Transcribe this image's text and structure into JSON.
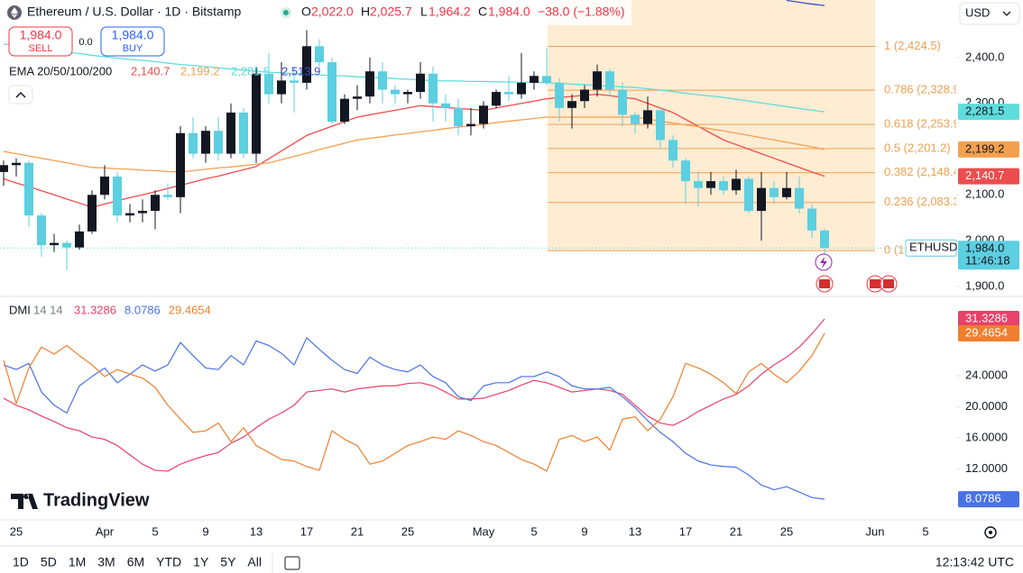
{
  "header": {
    "symbol": "Ethereum / U.S. Dollar · 1D · Bitstamp",
    "open_key": "O",
    "open": "2,022.0",
    "high_key": "H",
    "high": "2,025.7",
    "low_key": "L",
    "low": "1,964.2",
    "close_key": "C",
    "close": "1,984.0",
    "change": "−38.0 (−1.88%)"
  },
  "trade": {
    "sell_price": "1,984.0",
    "sell": "SELL",
    "spread": "0.0",
    "buy_price": "1,984.0",
    "buy": "BUY"
  },
  "currency": "USD",
  "brand": "TradingView",
  "timeframes": [
    "1D",
    "5D",
    "1M",
    "3M",
    "6M",
    "YTD",
    "1Y",
    "5Y",
    "All"
  ],
  "clock": "12:13:42 UTC",
  "chart_data": [
    {
      "type": "candlestick",
      "categories": [
        null,
        "25",
        null,
        null,
        null,
        null,
        null,
        null,
        "Apr",
        null,
        null,
        null,
        "5",
        null,
        null,
        null,
        "9",
        null,
        null,
        null,
        "13",
        null,
        null,
        null,
        "17",
        null,
        null,
        null,
        "21",
        null,
        null,
        null,
        "25",
        null,
        null,
        null,
        null,
        null,
        "May",
        null,
        null,
        null,
        "5",
        null,
        null,
        null,
        "9",
        null,
        null,
        null,
        "13",
        null,
        null,
        null,
        "17",
        null,
        null,
        null,
        "21",
        null,
        null,
        null,
        "25",
        null,
        null,
        null,
        null,
        null,
        null,
        "Jun",
        null,
        null,
        null,
        "5"
      ],
      "open": [
        2150,
        2165,
        2170,
        2055,
        1990,
        1995,
        1985,
        2020,
        2100,
        2140,
        2055,
        2060,
        2065,
        2100,
        2095,
        2235,
        2190,
        2240,
        2190,
        2280,
        2190,
        2365,
        2320,
        2350,
        2345,
        2425,
        2390,
        2260,
        2310,
        2315,
        2370,
        2330,
        2320,
        2325,
        2365,
        2300,
        2290,
        2250,
        2255,
        2295,
        2325,
        2320,
        2345,
        2360,
        2345,
        2290,
        2305,
        2330,
        2370,
        2330,
        2275,
        2255,
        2285,
        2220,
        2175,
        2130,
        2115,
        2130,
        2110,
        2135,
        2065,
        2115,
        2095,
        2115,
        2070,
        2022,
        null,
        null,
        null,
        null,
        null,
        null,
        null,
        null
      ],
      "high": [
        2175,
        2180,
        2175,
        2060,
        2015,
        2000,
        2035,
        2110,
        2165,
        2150,
        2080,
        2090,
        2110,
        2125,
        2250,
        2270,
        2250,
        2270,
        2300,
        2290,
        2380,
        2410,
        2390,
        2380,
        2460,
        2440,
        2400,
        2320,
        2340,
        2400,
        2390,
        2340,
        2330,
        2390,
        2380,
        2320,
        2310,
        2290,
        2305,
        2330,
        2360,
        2410,
        2370,
        2420,
        2355,
        2320,
        2340,
        2385,
        2375,
        2345,
        2280,
        2315,
        2290,
        2230,
        2180,
        2150,
        2150,
        2140,
        2155,
        2140,
        2150,
        2130,
        2150,
        2140,
        2080,
        2025.7,
        null,
        null,
        null,
        null,
        null,
        null,
        null,
        null
      ],
      "low": [
        2120,
        2140,
        2030,
        1965,
        1975,
        1935,
        1980,
        2015,
        2090,
        2040,
        2040,
        2040,
        2025,
        2090,
        2060,
        2180,
        2170,
        2175,
        2180,
        2180,
        2170,
        2300,
        2300,
        2280,
        2330,
        2380,
        2255,
        2255,
        2285,
        2300,
        2300,
        2300,
        2300,
        2310,
        2260,
        2260,
        2230,
        2230,
        2245,
        2290,
        2305,
        2310,
        2330,
        2340,
        2260,
        2245,
        2290,
        2315,
        2320,
        2250,
        2235,
        2245,
        2200,
        2160,
        2080,
        2075,
        2100,
        2100,
        2100,
        2060,
        2000,
        2080,
        2090,
        2060,
        2005,
        1964.2,
        null,
        null,
        null,
        null,
        null,
        null,
        null,
        null
      ],
      "close": [
        2165,
        2170,
        2055,
        1990,
        1995,
        1985,
        2020,
        2100,
        2140,
        2055,
        2060,
        2065,
        2100,
        2095,
        2235,
        2190,
        2240,
        2190,
        2280,
        2190,
        2365,
        2320,
        2350,
        2345,
        2425,
        2390,
        2260,
        2310,
        2315,
        2370,
        2330,
        2320,
        2325,
        2365,
        2300,
        2290,
        2250,
        2255,
        2295,
        2325,
        2320,
        2345,
        2360,
        2345,
        2290,
        2305,
        2330,
        2370,
        2330,
        2275,
        2255,
        2285,
        2220,
        2175,
        2130,
        2115,
        2130,
        2110,
        2135,
        2065,
        2115,
        2095,
        2115,
        2070,
        2022,
        1984,
        null,
        null,
        null,
        null,
        null,
        null,
        null,
        null
      ],
      "up_color": "#131722",
      "down_color": "#5ccfe0",
      "ylim": [
        1880,
        2526
      ],
      "yticks": [
        {
          "value": 1900,
          "label": "1,900.0"
        },
        {
          "value": 2000,
          "label": "2,000.0"
        },
        {
          "value": 2100,
          "label": "2,100.0"
        },
        {
          "value": 2300,
          "label": "2,300.0"
        },
        {
          "value": 2400,
          "label": "2,400.0"
        }
      ],
      "grid": false,
      "legend_title": "EMA 20/50/100/200",
      "series": [
        {
          "color": "#ec4d4d",
          "last_label": "2,140.7",
          "badge": true,
          "values": [
            2135,
            2126,
            2118,
            2109,
            2100,
            2091,
            2082,
            2073,
            2080,
            2087,
            2094,
            2100,
            2107,
            2114,
            2121,
            2128,
            2135,
            2141,
            2148,
            2155,
            2162,
            2179,
            2196,
            2213,
            2230,
            2240,
            2250,
            2260,
            2270,
            2275,
            2280,
            2285,
            2290,
            2295,
            2293,
            2291,
            2289,
            2287,
            2285,
            2290,
            2295,
            2300,
            2305,
            2310,
            2313,
            2315,
            2318,
            2320,
            2317,
            2313,
            2310,
            2300,
            2290,
            2280,
            2265,
            2250,
            2235,
            2220,
            2210,
            2200,
            2190,
            2180,
            2170,
            2160,
            2150,
            2140.7,
            null,
            null,
            null,
            null,
            null,
            null,
            null,
            null
          ]
        },
        {
          "color": "#f3a04e",
          "last_label": "2,199.2",
          "badge": true,
          "values": [
            2195,
            2190,
            2185,
            2180,
            2175,
            2170,
            2165,
            2160,
            2159,
            2157,
            2156,
            2154,
            2153,
            2151,
            2150,
            2153,
            2156,
            2159,
            2161,
            2164,
            2167,
            2170,
            2177,
            2184,
            2191,
            2199,
            2206,
            2213,
            2220,
            2224,
            2227,
            2231,
            2234,
            2238,
            2241,
            2245,
            2248,
            2251,
            2254,
            2258,
            2261,
            2264,
            2267,
            2270,
            2270,
            2270,
            2270,
            2270,
            2270,
            2270,
            2270,
            2266,
            2261,
            2257,
            2253,
            2249,
            2244,
            2240,
            2235,
            2230,
            2225,
            2220,
            2215,
            2210,
            2205,
            2199.2,
            null,
            null,
            null,
            null,
            null,
            null,
            null,
            null
          ]
        },
        {
          "color": "#5fdcdc",
          "last_label": "2,281.5",
          "badge": true,
          "values": [
            2430,
            2426,
            2423,
            2419,
            2416,
            2412,
            2409,
            2405,
            2402,
            2399,
            2396,
            2394,
            2391,
            2388,
            2385,
            2383,
            2380,
            2378,
            2375,
            2373,
            2370,
            2368,
            2367,
            2365,
            2364,
            2362,
            2361,
            2360,
            2358,
            2357,
            2356,
            2354,
            2353,
            2351,
            2350,
            2349,
            2349,
            2348,
            2348,
            2347,
            2347,
            2346,
            2346,
            2345,
            2344,
            2342,
            2341,
            2339,
            2338,
            2336,
            2335,
            2332,
            2329,
            2326,
            2322,
            2319,
            2316,
            2313,
            2309,
            2305,
            2301,
            2297,
            2293,
            2289,
            2285,
            2281.5,
            null,
            null,
            null,
            null,
            null,
            null,
            null,
            null
          ]
        },
        {
          "color": "#3f4bd1",
          "last_label": "2,513.9",
          "badge": false,
          "values": [
            null,
            null,
            null,
            null,
            null,
            null,
            null,
            null,
            null,
            null,
            null,
            null,
            null,
            null,
            null,
            null,
            null,
            null,
            null,
            null,
            null,
            null,
            null,
            null,
            null,
            null,
            null,
            null,
            null,
            null,
            null,
            null,
            null,
            null,
            null,
            null,
            null,
            null,
            null,
            null,
            null,
            null,
            null,
            null,
            null,
            null,
            null,
            null,
            null,
            null,
            null,
            null,
            null,
            null,
            null,
            null,
            null,
            null,
            null,
            null,
            null,
            null,
            2525,
            2521,
            2517,
            2513.9,
            null,
            null,
            null,
            null,
            null,
            null,
            null,
            null
          ]
        }
      ],
      "fib": {
        "color": "#f0a050",
        "fill": "#fde6c4",
        "levels": [
          {
            "label": "1 (2,424.5)",
            "value": 2424.5
          },
          {
            "label": "0.786 (2,328.9",
            "value": 2328.9
          },
          {
            "label": "0.618 (2,253.9",
            "value": 2253.9
          },
          {
            "label": "0.5 (2,201.2)",
            "value": 2201.2
          },
          {
            "label": "0.382 (2,148.4",
            "value": 2148.4
          },
          {
            "label": "0.236 (2,083.3",
            "value": 2083.3
          },
          {
            "label": "0 (1",
            "value": 1977.9
          }
        ]
      },
      "last_price": {
        "symbol": "ETHUSD",
        "label": "1,984.0",
        "countdown": "11:46:18"
      }
    },
    {
      "type": "line",
      "title": "DMI",
      "params": "14 14",
      "ylim": [
        6,
        34
      ],
      "yticks": [
        {
          "value": 12,
          "label": "12.0000"
        },
        {
          "value": 16,
          "label": "16.0000"
        },
        {
          "value": 20,
          "label": "20.0000"
        },
        {
          "value": 24,
          "label": "24.0000"
        }
      ],
      "grid": false,
      "series": [
        {
          "color": "#e8416a",
          "values": [
            21.1,
            20.2,
            19.6,
            18.8,
            18.1,
            17.3,
            16.9,
            16.1,
            15.8,
            15.0,
            13.8,
            12.6,
            11.8,
            11.7,
            12.6,
            13.2,
            13.7,
            14.1,
            15.3,
            16.1,
            17.3,
            18.4,
            19.2,
            20.2,
            21.9,
            22.1,
            22.3,
            21.9,
            22.3,
            22.5,
            22.7,
            22.7,
            23.0,
            23.1,
            22.7,
            21.9,
            21.0,
            21.0,
            21.1,
            21.6,
            22.1,
            22.8,
            23.4,
            23.1,
            22.5,
            21.9,
            22.1,
            22.3,
            22.1,
            21.6,
            20.2,
            18.8,
            17.9,
            17.6,
            18.4,
            19.4,
            20.2,
            21.0,
            21.6,
            22.7,
            24.2,
            25.4,
            26.4,
            27.7,
            29.4,
            31.3286,
            null,
            null,
            null,
            null,
            null,
            null,
            null,
            null
          ]
        },
        {
          "color": "#4a72e6",
          "values": [
            25.4,
            24.8,
            25.6,
            21.9,
            20.2,
            19.2,
            22.7,
            23.9,
            25.0,
            23.1,
            24.2,
            25.4,
            24.6,
            25.4,
            28.3,
            26.6,
            25.0,
            24.8,
            26.6,
            25.4,
            28.5,
            27.9,
            26.9,
            25.4,
            28.9,
            27.4,
            26.0,
            24.8,
            24.3,
            26.4,
            25.4,
            24.8,
            24.5,
            25.4,
            23.9,
            23.1,
            21.3,
            20.8,
            22.7,
            23.1,
            23.1,
            23.9,
            23.9,
            24.5,
            23.9,
            22.7,
            22.3,
            22.3,
            22.5,
            21.3,
            19.9,
            18.2,
            16.7,
            15.5,
            14.0,
            13.0,
            12.5,
            12.3,
            12.2,
            11.2,
            9.9,
            9.3,
            9.7,
            9.0,
            8.3,
            8.0786,
            null,
            null,
            null,
            null,
            null,
            null,
            null,
            null
          ]
        },
        {
          "color": "#ef7f2e",
          "values": [
            26.0,
            20.4,
            25.0,
            27.7,
            26.8,
            27.9,
            26.6,
            25.4,
            23.9,
            24.8,
            24.2,
            23.7,
            22.5,
            20.2,
            18.4,
            16.7,
            16.9,
            17.9,
            15.5,
            17.3,
            15.0,
            14.1,
            13.2,
            13.0,
            12.3,
            11.8,
            16.9,
            15.8,
            15.0,
            12.6,
            13.0,
            14.0,
            15.0,
            15.5,
            16.1,
            15.8,
            16.9,
            16.3,
            15.5,
            15.0,
            14.1,
            13.2,
            12.6,
            11.7,
            15.8,
            16.3,
            15.5,
            16.1,
            14.4,
            18.4,
            18.7,
            16.9,
            18.4,
            21.3,
            25.6,
            25.0,
            24.2,
            23.1,
            21.7,
            24.5,
            25.6,
            24.2,
            23.1,
            24.6,
            26.6,
            29.4654,
            null,
            null,
            null,
            null,
            null,
            null,
            null,
            null
          ]
        }
      ]
    }
  ]
}
